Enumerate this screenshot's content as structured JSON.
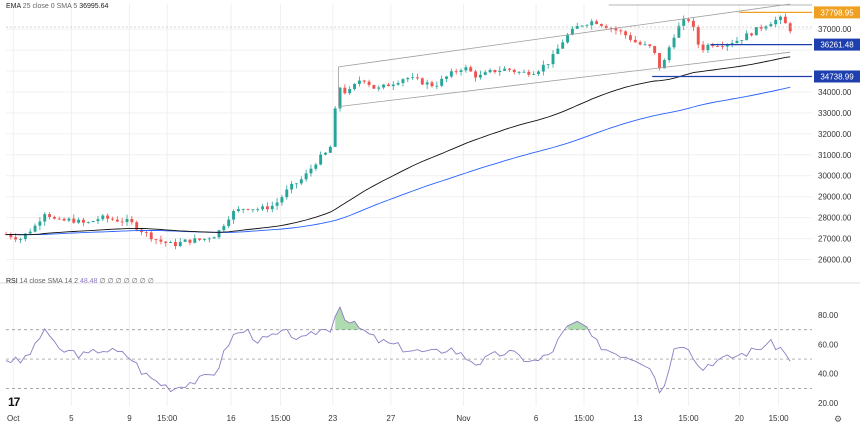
{
  "main_legend": {
    "indicator": "EMA",
    "params": "25 close 0 SMA 5",
    "value": "36995.64"
  },
  "rsi_legend": {
    "indicator": "RSI",
    "params": "14 close SMA 14 2",
    "value": "48.48",
    "placeholders": "∅ ∅ ∅ ∅ ∅ ∅ ∅"
  },
  "logo_text": "17",
  "colors": {
    "up": "#26a69a",
    "down": "#ef5350",
    "ema": "#111111",
    "sma": "#2962ff",
    "channel": "#9e9e9e",
    "support": "#1e3fae",
    "resistance": "#f0a020",
    "rsi_line": "#8e7cc3",
    "rsi_fill": "#4caf50",
    "rsi_band": "#888888",
    "grid": "#f0f0f0"
  },
  "chart_data": [
    {
      "type": "candlestick",
      "title": "",
      "xlabel": "",
      "ylabel": "",
      "ylim": [
        25500,
        38200
      ],
      "y_ticks": [
        26000,
        27000,
        28000,
        29000,
        30000,
        31000,
        32000,
        33000,
        34000,
        35000,
        36000,
        37000
      ],
      "y_tick_labels": [
        "26000.00",
        "27000.00",
        "28000.00",
        "29000.00",
        "30000.00",
        "31000.00",
        "32000.00",
        "33000.00",
        "34000.00",
        "35000.00",
        "36000.00",
        "37000.00"
      ],
      "x_tick_labels": [
        {
          "label": "Oct",
          "day": 1
        },
        {
          "label": "5",
          "day": 5
        },
        {
          "label": "9",
          "day": 9
        },
        {
          "label": "15:00",
          "day": 11.6
        },
        {
          "label": "16",
          "day": 16
        },
        {
          "label": "15:00",
          "day": 19.4
        },
        {
          "label": "23",
          "day": 23
        },
        {
          "label": "27",
          "day": 27
        },
        {
          "label": "Nov",
          "day": 32
        },
        {
          "label": "6",
          "day": 37
        },
        {
          "label": "15:00",
          "day": 40.3
        },
        {
          "label": "13",
          "day": 44
        },
        {
          "label": "15:00",
          "day": 47.5
        },
        {
          "label": "20",
          "day": 51
        },
        {
          "label": "15:00",
          "day": 53.7
        }
      ],
      "x_range_days": [
        0.5,
        56
      ],
      "anchor_closes": [
        [
          0.5,
          27200
        ],
        [
          1.5,
          27000
        ],
        [
          2.5,
          27600
        ],
        [
          3.2,
          28300
        ],
        [
          4,
          27800
        ],
        [
          5,
          27900
        ],
        [
          6,
          27700
        ],
        [
          7,
          28000
        ],
        [
          8,
          27900
        ],
        [
          9,
          27800
        ],
        [
          10,
          27300
        ],
        [
          11,
          26900
        ],
        [
          12,
          26700
        ],
        [
          13,
          26900
        ],
        [
          14,
          26950
        ],
        [
          15,
          27200
        ],
        [
          16,
          28200
        ],
        [
          17,
          28500
        ],
        [
          18,
          28400
        ],
        [
          19,
          28600
        ],
        [
          20,
          29400
        ],
        [
          21,
          29900
        ],
        [
          22,
          30800
        ],
        [
          22.8,
          31200
        ],
        [
          23.4,
          34300
        ],
        [
          24,
          33900
        ],
        [
          25,
          34700
        ],
        [
          26,
          34100
        ],
        [
          27,
          34400
        ],
        [
          28,
          34700
        ],
        [
          29,
          34500
        ],
        [
          30,
          34300
        ],
        [
          31,
          34800
        ],
        [
          32,
          35200
        ],
        [
          33,
          34700
        ],
        [
          34,
          35000
        ],
        [
          35,
          35100
        ],
        [
          36,
          34900
        ],
        [
          37,
          35000
        ],
        [
          38,
          35500
        ],
        [
          39,
          36600
        ],
        [
          40,
          37200
        ],
        [
          41,
          37400
        ],
        [
          42,
          37100
        ],
        [
          43,
          36800
        ],
        [
          44,
          36300
        ],
        [
          45,
          36100
        ],
        [
          45.6,
          35000
        ],
        [
          46.4,
          36600
        ],
        [
          47,
          37300
        ],
        [
          47.6,
          37500
        ],
        [
          48.3,
          36000
        ],
        [
          49,
          36300
        ],
        [
          50,
          36300
        ],
        [
          51,
          36500
        ],
        [
          52,
          36900
        ],
        [
          53,
          37300
        ],
        [
          53.8,
          37500
        ],
        [
          54.5,
          36995.64
        ]
      ],
      "ema": {
        "name": "EMA",
        "period": 25
      },
      "sma": {
        "name": "SMA",
        "period": 5
      },
      "channel": {
        "upper": [
          [
            23.4,
            35200
          ],
          [
            54.5,
            38200
          ]
        ],
        "lower": [
          [
            23.4,
            33300
          ],
          [
            54.5,
            35900
          ]
        ]
      },
      "levels": [
        {
          "value": 37798.95,
          "label": "37798.95",
          "from_day": 51,
          "kind": "resistance"
        },
        {
          "value": 36261.48,
          "label": "36261.48",
          "from_day": 49,
          "kind": "support"
        },
        {
          "value": 34738.99,
          "label": "34738.99",
          "from_day": 45,
          "kind": "support"
        }
      ],
      "resistance_top_line": {
        "value": 38200,
        "from_day": 42
      },
      "current_price_line": 37100
    },
    {
      "type": "line",
      "title": "",
      "xlabel": "",
      "ylabel": "",
      "ylim": [
        18,
        93
      ],
      "y_ticks": [
        20,
        40,
        60,
        80
      ],
      "y_tick_labels": [
        "20.00",
        "40.00",
        "60.00",
        "80.00"
      ],
      "bands": [
        30,
        50,
        70
      ],
      "series": [
        {
          "name": "RSI",
          "points": [
            [
              0.5,
              50
            ],
            [
              1.5,
              48
            ],
            [
              2.5,
              58
            ],
            [
              3.2,
              72
            ],
            [
              4,
              56
            ],
            [
              5,
              55
            ],
            [
              6,
              52
            ],
            [
              7,
              57
            ],
            [
              8,
              55
            ],
            [
              9,
              52
            ],
            [
              10,
              40
            ],
            [
              11,
              34
            ],
            [
              12,
              30
            ],
            [
              13,
              34
            ],
            [
              14,
              36
            ],
            [
              15,
              42
            ],
            [
              16,
              65
            ],
            [
              17,
              70
            ],
            [
              18,
              62
            ],
            [
              19,
              66
            ],
            [
              20,
              68
            ],
            [
              21,
              62
            ],
            [
              22,
              70
            ],
            [
              22.8,
              70
            ],
            [
              23.4,
              88
            ],
            [
              24,
              76
            ],
            [
              25,
              70
            ],
            [
              26,
              63
            ],
            [
              27,
              60
            ],
            [
              28,
              57
            ],
            [
              29,
              55
            ],
            [
              30,
              54
            ],
            [
              31,
              58
            ],
            [
              32,
              52
            ],
            [
              33,
              47
            ],
            [
              34,
              52
            ],
            [
              35,
              55
            ],
            [
              36,
              51
            ],
            [
              37,
              48
            ],
            [
              38,
              54
            ],
            [
              39,
              70
            ],
            [
              40,
              76
            ],
            [
              41,
              62
            ],
            [
              42,
              56
            ],
            [
              43,
              53
            ],
            [
              44,
              50
            ],
            [
              45,
              45
            ],
            [
              45.6,
              24
            ],
            [
              46.4,
              55
            ],
            [
              47,
              62
            ],
            [
              47.6,
              58
            ],
            [
              48.3,
              42
            ],
            [
              49,
              48
            ],
            [
              50,
              50
            ],
            [
              51,
              53
            ],
            [
              52,
              56
            ],
            [
              53,
              61
            ],
            [
              53.8,
              58
            ],
            [
              54.5,
              48.48
            ]
          ]
        }
      ]
    }
  ]
}
